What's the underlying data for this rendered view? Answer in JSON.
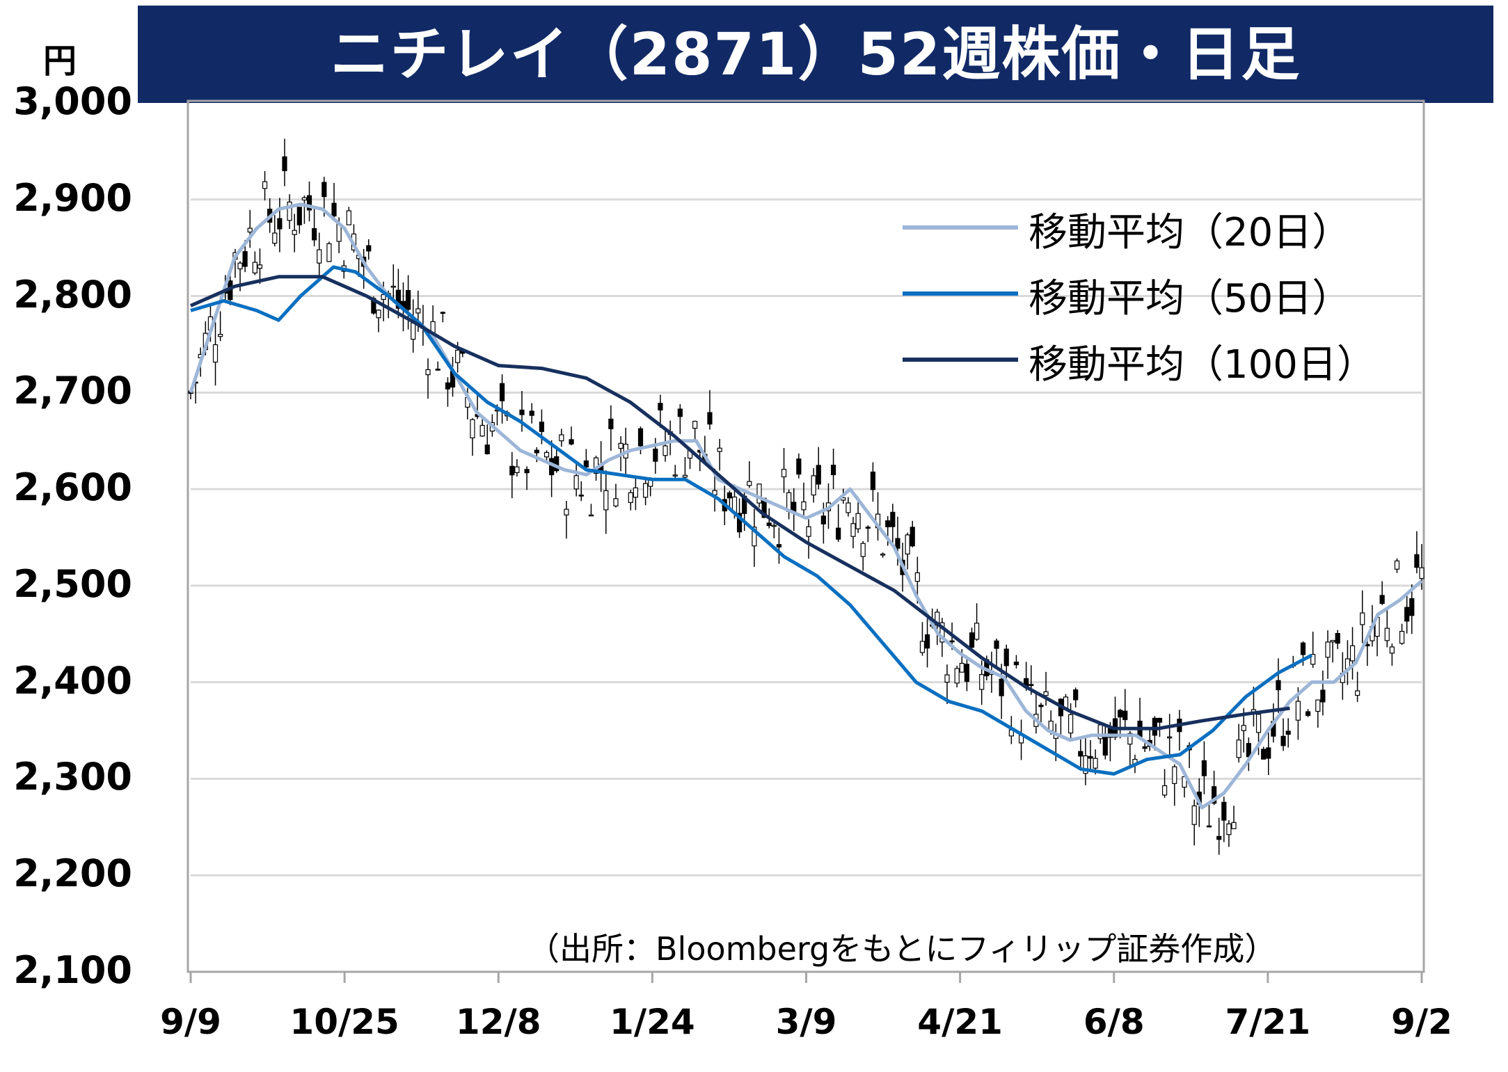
{
  "chart_data": {
    "type": "candlestick_with_moving_averages",
    "title": "ニチレイ（2871）52週株価・日足",
    "unit": "円",
    "ylim": [
      2100,
      3000
    ],
    "y_ticks": [
      "3,000",
      "2,900",
      "2,800",
      "2,700",
      "2,600",
      "2,500",
      "2,400",
      "2,300",
      "2,200",
      "2,100"
    ],
    "y_tick_values": [
      3000,
      2900,
      2800,
      2700,
      2600,
      2500,
      2400,
      2300,
      2200,
      2100
    ],
    "x_ticks": [
      "9/9",
      "10/25",
      "12/8",
      "1/24",
      "3/9",
      "4/21",
      "6/8",
      "7/21",
      "9/2"
    ],
    "grid": "horizontal",
    "legend_position": "top-right",
    "source": "（出所：Bloombergをもとにフィリップ証券作成）",
    "series": [
      {
        "name": "移動平均（20日）",
        "color": "#9db6d8",
        "points": [
          [
            0,
            2700
          ],
          [
            2,
            2770
          ],
          [
            4,
            2840
          ],
          [
            6,
            2870
          ],
          [
            8,
            2890
          ],
          [
            10,
            2895
          ],
          [
            12,
            2890
          ],
          [
            14,
            2870
          ],
          [
            16,
            2830
          ],
          [
            18,
            2800
          ],
          [
            20,
            2780
          ],
          [
            22,
            2760
          ],
          [
            24,
            2720
          ],
          [
            26,
            2680
          ],
          [
            28,
            2660
          ],
          [
            30,
            2640
          ],
          [
            32,
            2630
          ],
          [
            34,
            2620
          ],
          [
            36,
            2615
          ],
          [
            38,
            2630
          ],
          [
            40,
            2640
          ],
          [
            42,
            2645
          ],
          [
            44,
            2650
          ],
          [
            46,
            2650
          ],
          [
            48,
            2610
          ],
          [
            50,
            2600
          ],
          [
            52,
            2590
          ],
          [
            54,
            2580
          ],
          [
            56,
            2570
          ],
          [
            58,
            2580
          ],
          [
            60,
            2600
          ],
          [
            62,
            2570
          ],
          [
            64,
            2540
          ],
          [
            66,
            2490
          ],
          [
            68,
            2450
          ],
          [
            70,
            2430
          ],
          [
            72,
            2415
          ],
          [
            74,
            2405
          ],
          [
            76,
            2370
          ],
          [
            78,
            2350
          ],
          [
            80,
            2340
          ],
          [
            82,
            2345
          ],
          [
            84,
            2345
          ],
          [
            86,
            2345
          ],
          [
            88,
            2330
          ],
          [
            90,
            2315
          ],
          [
            92,
            2270
          ],
          [
            94,
            2285
          ],
          [
            96,
            2315
          ],
          [
            98,
            2350
          ],
          [
            100,
            2380
          ],
          [
            102,
            2400
          ],
          [
            104,
            2400
          ],
          [
            106,
            2420
          ],
          [
            108,
            2470
          ],
          [
            110,
            2485
          ],
          [
            112,
            2505
          ]
        ]
      },
      {
        "name": "移動平均（50日）",
        "color": "#0a6fc0",
        "points": [
          [
            0,
            2785
          ],
          [
            3,
            2795
          ],
          [
            6,
            2785
          ],
          [
            8,
            2775
          ],
          [
            10,
            2800
          ],
          [
            13,
            2830
          ],
          [
            15,
            2825
          ],
          [
            18,
            2800
          ],
          [
            21,
            2770
          ],
          [
            24,
            2720
          ],
          [
            27,
            2690
          ],
          [
            30,
            2670
          ],
          [
            33,
            2645
          ],
          [
            36,
            2620
          ],
          [
            39,
            2615
          ],
          [
            42,
            2610
          ],
          [
            45,
            2610
          ],
          [
            48,
            2590
          ],
          [
            51,
            2560
          ],
          [
            54,
            2530
          ],
          [
            57,
            2510
          ],
          [
            60,
            2480
          ],
          [
            63,
            2440
          ],
          [
            66,
            2400
          ],
          [
            69,
            2380
          ],
          [
            72,
            2370
          ],
          [
            75,
            2350
          ],
          [
            78,
            2330
          ],
          [
            81,
            2310
          ],
          [
            84,
            2305
          ],
          [
            87,
            2320
          ],
          [
            90,
            2325
          ],
          [
            93,
            2350
          ],
          [
            96,
            2385
          ],
          [
            99,
            2410
          ],
          [
            102,
            2428
          ]
        ]
      },
      {
        "name": "移動平均（100日）",
        "color": "#17305e",
        "points": [
          [
            0,
            2790
          ],
          [
            4,
            2810
          ],
          [
            8,
            2820
          ],
          [
            12,
            2820
          ],
          [
            16,
            2800
          ],
          [
            20,
            2775
          ],
          [
            24,
            2748
          ],
          [
            28,
            2728
          ],
          [
            32,
            2725
          ],
          [
            36,
            2715
          ],
          [
            40,
            2690
          ],
          [
            44,
            2655
          ],
          [
            48,
            2615
          ],
          [
            52,
            2575
          ],
          [
            56,
            2545
          ],
          [
            60,
            2520
          ],
          [
            64,
            2495
          ],
          [
            68,
            2460
          ],
          [
            72,
            2425
          ],
          [
            76,
            2395
          ],
          [
            80,
            2370
          ],
          [
            84,
            2352
          ],
          [
            88,
            2352
          ],
          [
            92,
            2360
          ],
          [
            96,
            2367
          ],
          [
            100,
            2373
          ]
        ]
      }
    ]
  },
  "colors": {
    "title_band": "#112a66",
    "grid": "#d9d9d9",
    "axis": "#a6a6a6",
    "candle": "#000000"
  }
}
